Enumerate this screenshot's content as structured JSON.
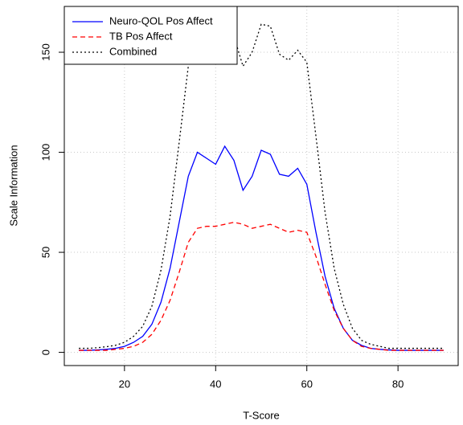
{
  "chart_data": {
    "type": "line",
    "x_label": "T-Score",
    "y_label": "Scale Information",
    "x": [
      10,
      12,
      14,
      16,
      18,
      20,
      22,
      24,
      26,
      28,
      30,
      32,
      34,
      36,
      38,
      40,
      42,
      44,
      46,
      48,
      50,
      52,
      54,
      56,
      58,
      60,
      62,
      64,
      66,
      68,
      70,
      72,
      74,
      76,
      78,
      80,
      82,
      84,
      86,
      88,
      90
    ],
    "series": [
      {
        "name": "Neuro-QOL Pos Affect",
        "color": "#0000ff",
        "linestyle": "solid",
        "values": [
          1,
          1,
          1.2,
          1.5,
          2,
          3,
          5,
          8,
          14,
          25,
          42,
          65,
          88,
          100,
          97,
          94,
          103,
          96,
          81,
          88,
          101,
          99,
          89,
          88,
          92,
          84,
          60,
          38,
          22,
          12,
          6,
          3.5,
          2,
          1.5,
          1.2,
          1,
          1,
          1,
          1,
          1,
          1
        ]
      },
      {
        "name": "TB Pos Affect",
        "color": "#ff0000",
        "linestyle": "dashed",
        "values": [
          1,
          1,
          1,
          1,
          1.5,
          2,
          3,
          5,
          9,
          16,
          26,
          40,
          55,
          62,
          63,
          63,
          64,
          65,
          64,
          62,
          63,
          64,
          62,
          60,
          61,
          60,
          48,
          34,
          21,
          12,
          6,
          3,
          2,
          1.5,
          1,
          1,
          1,
          1,
          1,
          1,
          1
        ]
      },
      {
        "name": "Combined",
        "color": "#000000",
        "linestyle": "dotted",
        "values": [
          2,
          2,
          2.3,
          2.8,
          3.5,
          5,
          8,
          13,
          23,
          41,
          68,
          105,
          143,
          158,
          158,
          157,
          163,
          158,
          143,
          150,
          164,
          163,
          149,
          146,
          151,
          145,
          108,
          70,
          42,
          24,
          12,
          6,
          4,
          3,
          2,
          2,
          2,
          2,
          2,
          2,
          2
        ]
      }
    ],
    "xlim": [
      6.8,
      93.2
    ],
    "ylim": [
      -6.6,
      172.9
    ],
    "xticks": [
      20,
      40,
      60,
      80
    ],
    "yticks": [
      0,
      50,
      100,
      150
    ],
    "grid": true,
    "legend_position": "top-left"
  }
}
